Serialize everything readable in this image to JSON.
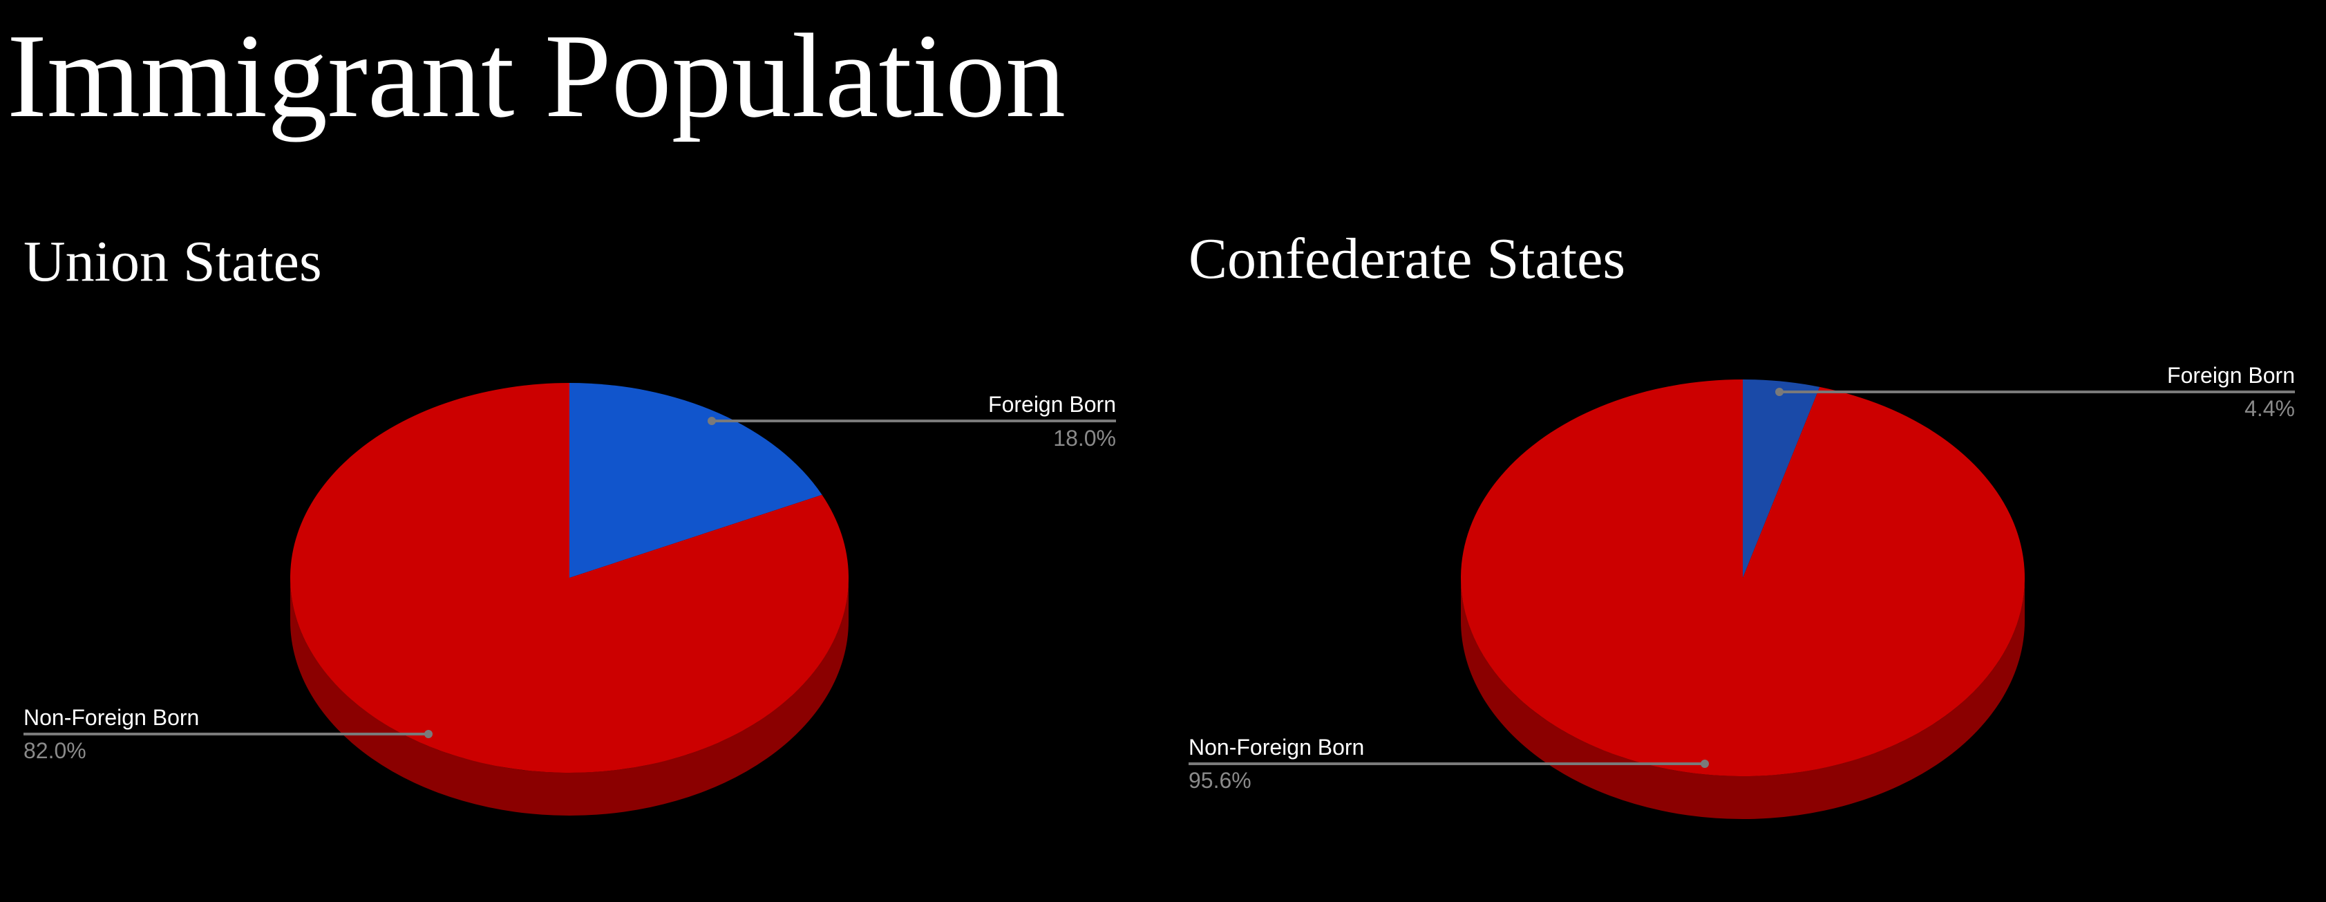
{
  "slide": {
    "title": "Immigrant Population"
  },
  "colors": {
    "background": "#000000",
    "text": "#ffffff",
    "percent_text": "#8a8a8a",
    "leader_line": "#7a7a7a",
    "foreign_born_left": "#1155cc",
    "foreign_born_right": "#1a4aa8",
    "non_foreign_born": "#cc0000",
    "non_foreign_born_side": "#8b0000"
  },
  "chart_data": [
    {
      "type": "pie",
      "style": "3d",
      "title": "Union States",
      "slices": [
        {
          "label": "Foreign Born",
          "value": 18.0,
          "display": "18.0%",
          "color": "#1155cc"
        },
        {
          "label": "Non-Foreign Born",
          "value": 82.0,
          "display": "82.0%",
          "color": "#cc0000"
        }
      ]
    },
    {
      "type": "pie",
      "style": "3d",
      "title": "Confederate States",
      "slices": [
        {
          "label": "Foreign Born",
          "value": 4.4,
          "display": "4.4%",
          "color": "#1a4aa8"
        },
        {
          "label": "Non-Foreign Born",
          "value": 95.6,
          "display": "95.6%",
          "color": "#cc0000"
        }
      ]
    }
  ]
}
